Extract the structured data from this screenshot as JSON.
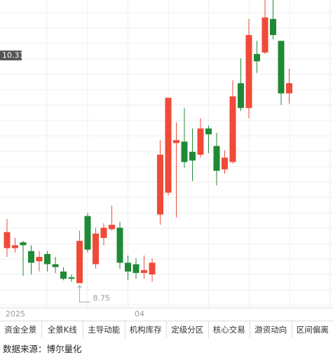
{
  "chart_data": {
    "type": "candlestick",
    "categories": [
      "2025",
      null,
      null,
      null,
      null,
      null,
      null,
      null,
      null,
      null,
      null,
      null,
      null,
      null,
      null,
      null,
      "04",
      null,
      null,
      null,
      null,
      null,
      null,
      null,
      null,
      null,
      null,
      null,
      null,
      null,
      null,
      null,
      null,
      null,
      null,
      null
    ],
    "open": [
      8.99,
      8.99,
      9.03,
      8.97,
      8.9,
      8.95,
      8.88,
      8.83,
      8.79,
      8.75,
      9.21,
      8.88,
      9.06,
      9.12,
      9.13,
      8.89,
      8.88,
      8.82,
      8.81,
      9.22,
      9.37,
      9.71,
      9.72,
      9.65,
      9.63,
      9.81,
      9.69,
      9.53,
      9.58,
      10.12,
      9.95,
      10.32,
      10.33,
      10.56,
      10.41,
      10.05
    ],
    "high": [
      9.19,
      9.06,
      9.04,
      9.01,
      8.97,
      8.97,
      8.93,
      8.86,
      8.81,
      9.11,
      9.23,
      9.13,
      9.16,
      9.28,
      9.17,
      8.94,
      8.92,
      8.94,
      8.92,
      9.73,
      10.02,
      9.85,
      9.95,
      9.81,
      9.88,
      9.83,
      9.78,
      9.66,
      10.14,
      10.29,
      10.56,
      10.41,
      10.69,
      10.69,
      10.41,
      10.22
    ],
    "low": [
      8.93,
      8.96,
      8.8,
      8.81,
      8.83,
      8.83,
      8.82,
      8.77,
      8.76,
      8.75,
      8.96,
      8.85,
      9.01,
      9.11,
      8.85,
      8.77,
      8.78,
      8.78,
      8.76,
      9.15,
      9.35,
      9.2,
      9.54,
      9.45,
      9.61,
      9.64,
      9.42,
      9.5,
      9.57,
      9.93,
      9.88,
      10.19,
      10.32,
      10.42,
      9.97,
      9.98
    ],
    "close": [
      9.1,
      9.01,
      9.01,
      8.89,
      8.93,
      8.88,
      8.86,
      8.78,
      8.78,
      9.04,
      8.98,
      9.09,
      9.13,
      9.15,
      8.89,
      8.83,
      8.82,
      8.84,
      8.89,
      9.63,
      10.02,
      9.73,
      9.58,
      9.59,
      9.81,
      9.77,
      9.52,
      9.61,
      10.03,
      9.95,
      10.45,
      10.27,
      10.57,
      10.45,
      10.05,
      10.12
    ],
    "up_color": "#f04a38",
    "down_color": "#1f8a35",
    "ylim": [
      8.58,
      10.69
    ],
    "grid": true,
    "price_label": 10.31,
    "low_label": 8.75
  },
  "tabs": [
    "资金全景",
    "全景K线",
    "主导动能",
    "机构库存",
    "定级分区",
    "核心交易",
    "游资动向",
    "区间偏离"
  ],
  "source": "数据来源：博尔量化"
}
